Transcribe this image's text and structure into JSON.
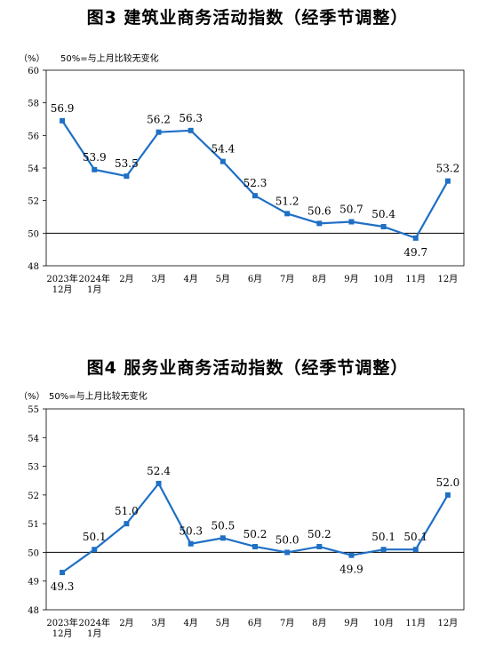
{
  "chart_data": [
    {
      "type": "line",
      "title": "图3  建筑业商务活动指数（经季节调整）",
      "unit": "（%）",
      "note": "50%=与上月比较无变化",
      "categories": [
        "2023年\n12月",
        "2024年\n1月",
        "2月",
        "3月",
        "4月",
        "5月",
        "6月",
        "7月",
        "8月",
        "9月",
        "10月",
        "11月",
        "12月"
      ],
      "values": [
        56.9,
        53.9,
        53.5,
        56.2,
        56.3,
        54.4,
        52.3,
        51.2,
        50.6,
        50.7,
        50.4,
        49.7,
        53.2
      ],
      "labels": [
        "56.9",
        "53.9",
        "53.5",
        "56.2",
        "56.3",
        "54.4",
        "52.3",
        "51.2",
        "50.6",
        "50.7",
        "50.4",
        "49.7",
        "53.2"
      ],
      "yticks": [
        "60",
        "58",
        "56",
        "54",
        "52",
        "50",
        "48"
      ],
      "ylim": [
        48,
        60
      ],
      "reference_line": 50,
      "color": "#1f6fc5"
    },
    {
      "type": "line",
      "title": "图4  服务业商务活动指数（经季节调整）",
      "unit": "（%）",
      "note": "50%=与上月比较无变化",
      "categories": [
        "2023年\n12月",
        "2024年\n1月",
        "2月",
        "3月",
        "4月",
        "5月",
        "6月",
        "7月",
        "8月",
        "9月",
        "10月",
        "11月",
        "12月"
      ],
      "values": [
        49.3,
        50.1,
        51.0,
        52.4,
        50.3,
        50.5,
        50.2,
        50.0,
        50.2,
        49.9,
        50.1,
        50.1,
        52.0
      ],
      "labels": [
        "49.3",
        "50.1",
        "51.0",
        "52.4",
        "50.3",
        "50.5",
        "50.2",
        "50.0",
        "50.2",
        "49.9",
        "50.1",
        "50.1",
        "52.0"
      ],
      "yticks": [
        "55",
        "54",
        "53",
        "52",
        "51",
        "50",
        "49",
        "48"
      ],
      "ylim": [
        48,
        55
      ],
      "reference_line": 50,
      "color": "#1f6fc5"
    }
  ]
}
